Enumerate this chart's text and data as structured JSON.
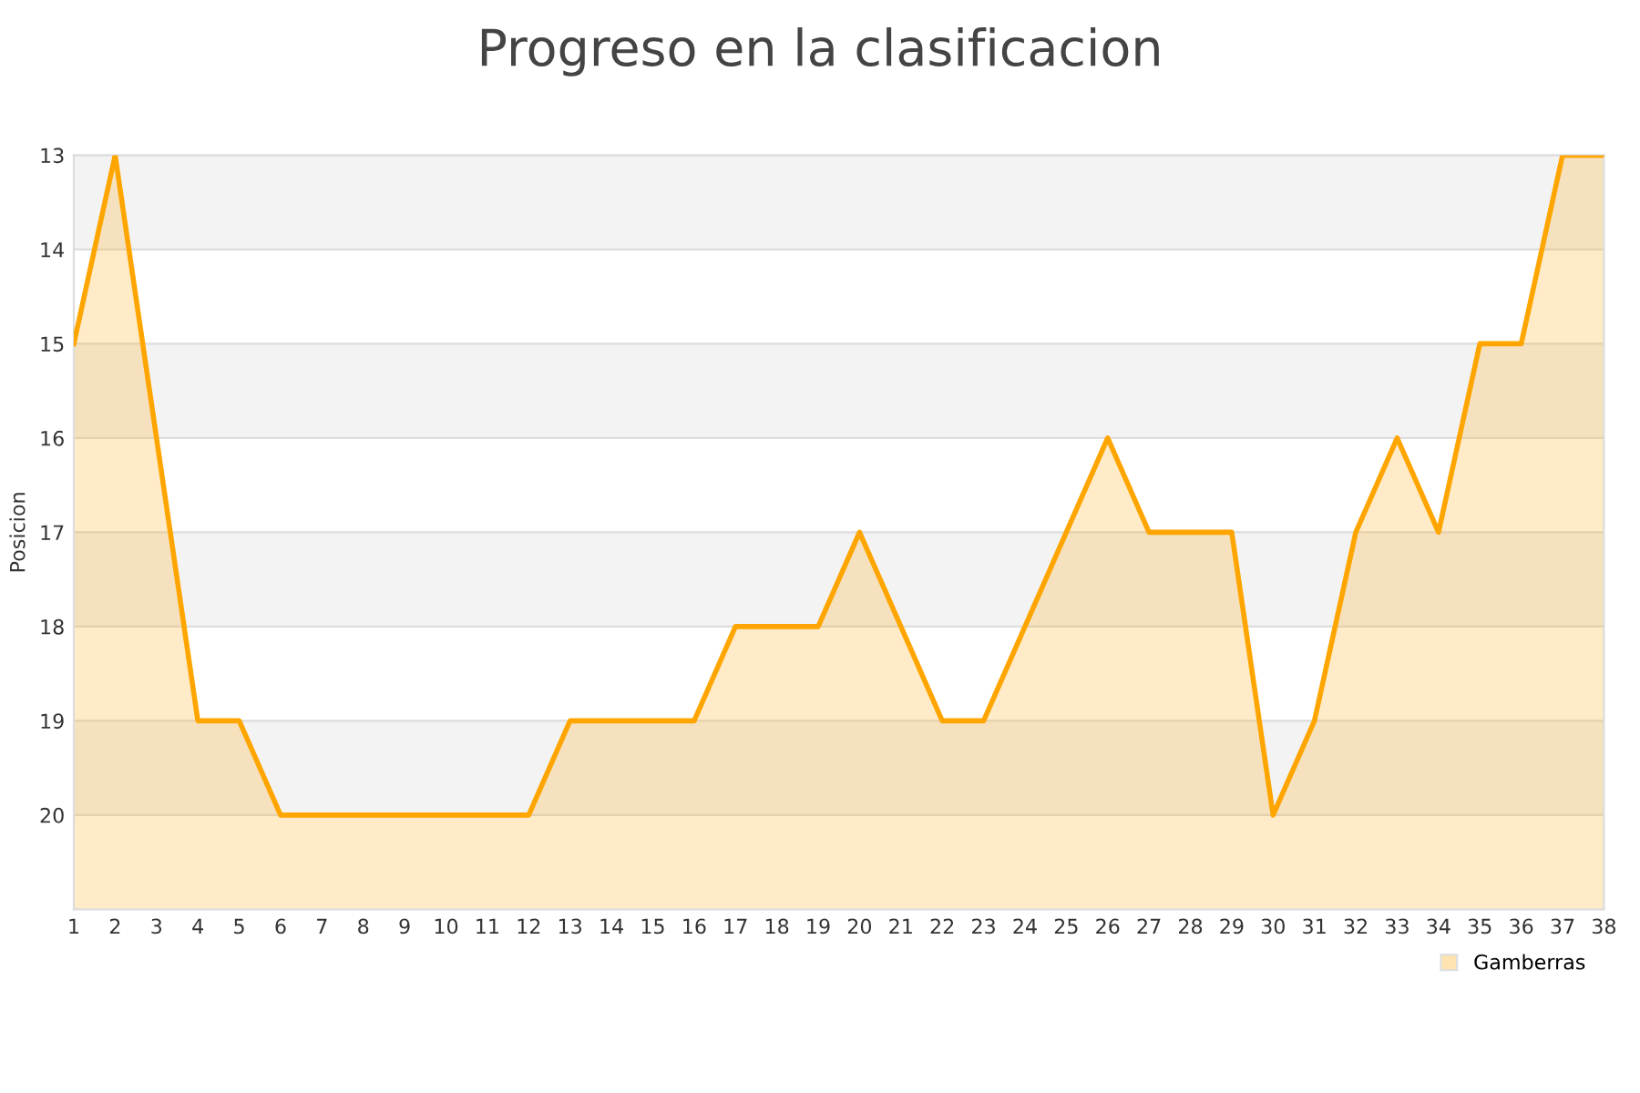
{
  "chart_data": {
    "type": "area",
    "title": "Progreso en la clasificacion",
    "ylabel": "Posicion",
    "x": [
      1,
      2,
      3,
      4,
      5,
      6,
      7,
      8,
      9,
      10,
      11,
      12,
      13,
      14,
      15,
      16,
      17,
      18,
      19,
      20,
      21,
      22,
      23,
      24,
      25,
      26,
      27,
      28,
      29,
      30,
      31,
      32,
      33,
      34,
      35,
      36,
      37,
      38
    ],
    "series": [
      {
        "name": "Gamberras",
        "color": "#ffa500",
        "values": [
          15,
          13,
          16,
          19,
          19,
          20,
          20,
          20,
          20,
          20,
          20,
          20,
          19,
          19,
          19,
          19,
          18,
          18,
          18,
          17,
          18,
          19,
          19,
          18,
          17,
          16,
          17,
          17,
          17,
          20,
          19,
          17,
          16,
          17,
          15,
          15,
          13,
          13
        ]
      }
    ],
    "xlim": [
      1,
      38
    ],
    "xticks": [
      1,
      2,
      3,
      4,
      5,
      6,
      7,
      8,
      9,
      10,
      11,
      12,
      13,
      14,
      15,
      16,
      17,
      18,
      19,
      20,
      21,
      22,
      23,
      24,
      25,
      26,
      27,
      28,
      29,
      30,
      31,
      32,
      33,
      34,
      35,
      36,
      37,
      38
    ],
    "ylim": [
      21,
      13
    ],
    "yticks": [
      13,
      14,
      15,
      16,
      17,
      18,
      19,
      20
    ],
    "bands": [
      {
        "axis": "y",
        "from": 13,
        "to": 14,
        "color": "#f3f3f3"
      },
      {
        "axis": "y",
        "from": 15,
        "to": 16,
        "color": "#f3f3f3"
      },
      {
        "axis": "y",
        "from": 17,
        "to": 18,
        "color": "#f3f3f3"
      },
      {
        "axis": "y",
        "from": 19,
        "to": 20,
        "color": "#f3f3f3"
      }
    ],
    "grid": "y",
    "legend": "bottom right",
    "marker": "none",
    "line_style": "solid"
  }
}
